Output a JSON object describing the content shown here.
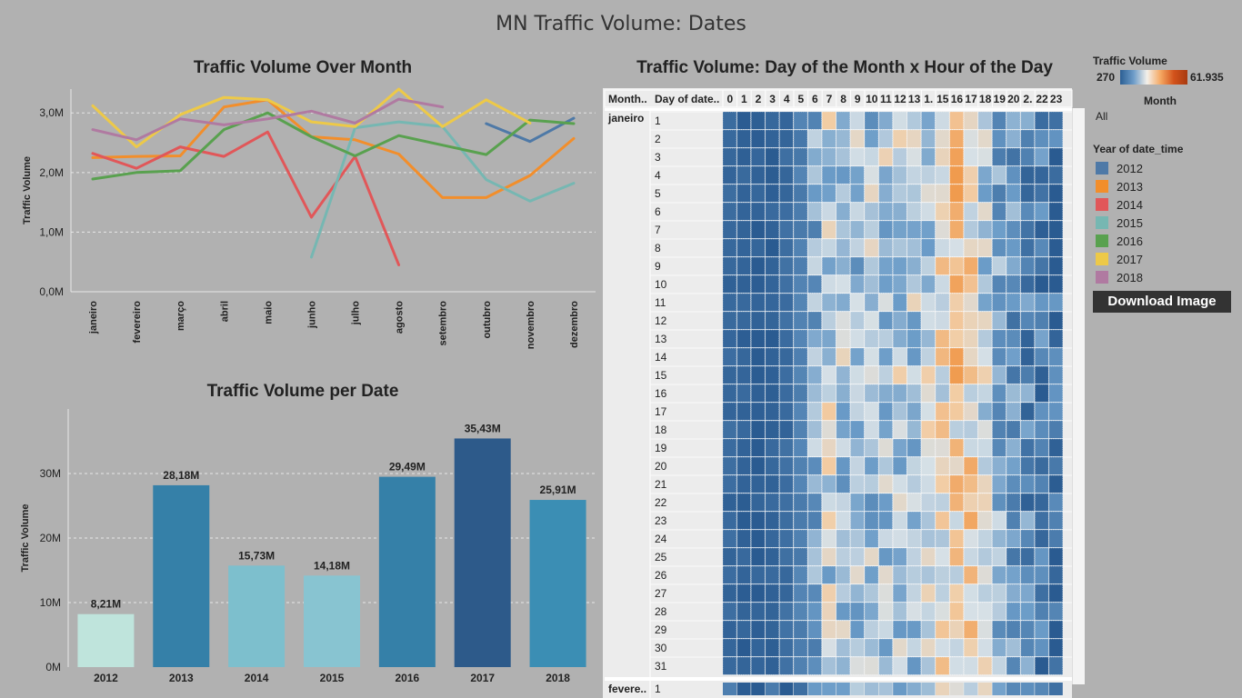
{
  "dashboard_title": "MN Traffic Volume: Dates",
  "download_label": "Download Image",
  "colors": {
    "year_2012": "#4e79a7",
    "year_2013": "#f28e2b",
    "year_2014": "#e15759",
    "year_2015": "#76b7b2",
    "year_2016": "#59a14f",
    "year_2017": "#edc948",
    "year_2018": "#b07aa1"
  },
  "legend": {
    "traffic_title": "Traffic Volume",
    "traffic_min": "270",
    "traffic_max": "61.935",
    "month_title": "Month",
    "month_value": "All",
    "year_title": "Year of date_time",
    "years": [
      "2012",
      "2013",
      "2014",
      "2015",
      "2016",
      "2017",
      "2018"
    ]
  },
  "chart_data": [
    {
      "type": "line",
      "title": "Traffic Volume Over Month",
      "xlabel": "",
      "ylabel": "Traffic Volume",
      "categories": [
        "janeiro",
        "fevereiro",
        "março",
        "abril",
        "maio",
        "junho",
        "julho",
        "agosto",
        "setembro",
        "outubro",
        "novembro",
        "dezembro"
      ],
      "yticks": [
        "0,0M",
        "1,0M",
        "2,0M",
        "3,0M"
      ],
      "ylim": [
        0,
        3.4
      ],
      "grid": true,
      "series": [
        {
          "name": "2012",
          "color": "#4e79a7",
          "values": [
            null,
            null,
            null,
            null,
            null,
            null,
            null,
            null,
            null,
            2.82,
            2.52,
            2.91
          ]
        },
        {
          "name": "2013",
          "color": "#f28e2b",
          "values": [
            2.25,
            2.27,
            2.28,
            3.1,
            3.22,
            2.6,
            2.55,
            2.31,
            1.58,
            1.58,
            1.95,
            2.57
          ]
        },
        {
          "name": "2014",
          "color": "#e15759",
          "values": [
            2.32,
            2.07,
            2.43,
            2.27,
            2.68,
            1.25,
            2.27,
            0.45,
            null,
            null,
            null,
            null
          ]
        },
        {
          "name": "2015",
          "color": "#76b7b2",
          "values": [
            null,
            null,
            null,
            null,
            null,
            0.58,
            2.75,
            2.85,
            2.77,
            1.88,
            1.52,
            1.82
          ]
        },
        {
          "name": "2016",
          "color": "#59a14f",
          "values": [
            1.89,
            2.0,
            2.03,
            2.72,
            3.0,
            2.6,
            2.28,
            2.62,
            2.46,
            2.3,
            2.88,
            2.82
          ]
        },
        {
          "name": "2017",
          "color": "#edc948",
          "values": [
            3.12,
            2.43,
            2.97,
            3.26,
            3.22,
            2.85,
            2.77,
            3.4,
            2.77,
            3.22,
            2.83,
            null
          ]
        },
        {
          "name": "2018",
          "color": "#b07aa1",
          "values": [
            2.72,
            2.55,
            2.9,
            2.8,
            2.9,
            3.03,
            2.83,
            3.23,
            3.1,
            null,
            null,
            null
          ]
        }
      ]
    },
    {
      "type": "bar",
      "title": "Traffic Volume per Date",
      "xlabel": "",
      "ylabel": "Traffic Volume",
      "categories": [
        "2012",
        "2013",
        "2014",
        "2015",
        "2016",
        "2017",
        "2018"
      ],
      "values": [
        8.21,
        28.18,
        15.73,
        14.18,
        29.49,
        35.43,
        25.91
      ],
      "data_labels": [
        "8,21M",
        "28,18M",
        "15,73M",
        "14,18M",
        "29,49M",
        "35,43M",
        "25,91M"
      ],
      "bar_colors": [
        "#bfe4dc",
        "#3580a8",
        "#7dbfcd",
        "#88c4d1",
        "#3580a8",
        "#2d5a8a",
        "#3b8eb4"
      ],
      "yticks": [
        "0M",
        "10M",
        "20M",
        "30M"
      ],
      "ylim": [
        0,
        40
      ],
      "grid": true
    },
    {
      "type": "heatmap",
      "title": "Traffic Volume: Day of the Month x Hour of the Day",
      "row_header": "Month..",
      "day_header": "Day of date..",
      "columns": [
        "0",
        "1",
        "2",
        "3",
        "4",
        "5",
        "6",
        "7",
        "8",
        "9",
        "10",
        "11",
        "12",
        "13",
        "1.",
        "15",
        "16",
        "17",
        "18",
        "19",
        "20",
        "2.",
        "22",
        "23"
      ],
      "months": [
        "janeiro",
        "fevere.."
      ],
      "days": [
        "1",
        "2",
        "3",
        "4",
        "5",
        "6",
        "7",
        "8",
        "9",
        "10",
        "11",
        "12",
        "13",
        "14",
        "15",
        "16",
        "17",
        "18",
        "19",
        "20",
        "21",
        "22",
        "23",
        "24",
        "25",
        "26",
        "27",
        "28",
        "29",
        "30",
        "31"
      ],
      "next_month_days": [
        "1"
      ],
      "range": [
        270,
        61935
      ],
      "scale_note": "diverging blue-white-orange"
    }
  ]
}
